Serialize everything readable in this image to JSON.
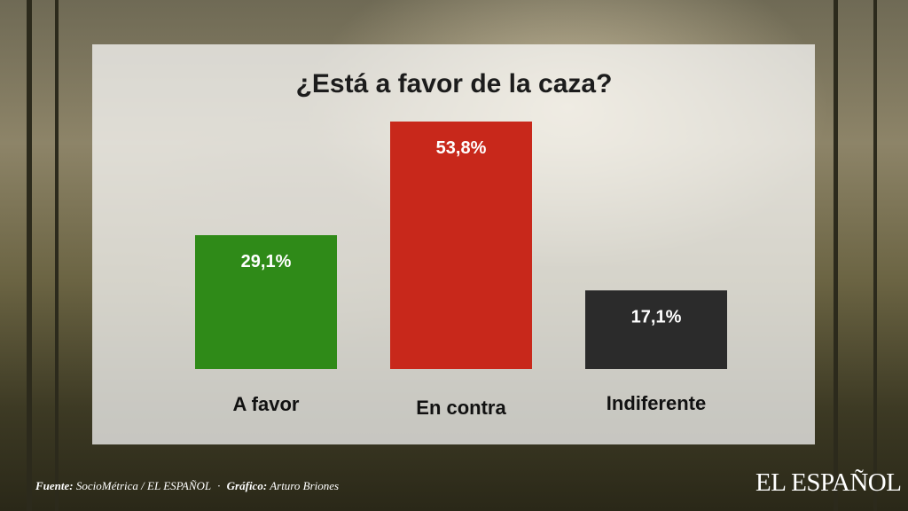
{
  "chart_data": {
    "type": "bar",
    "title": "¿Está a favor de la caza?",
    "categories": [
      "A favor",
      "En contra",
      "Indiferente"
    ],
    "values": [
      29.1,
      53.8,
      17.1
    ],
    "value_labels": [
      "29,1%",
      "53,8%",
      "17,1%"
    ],
    "colors": [
      "#2f8a18",
      "#c8281b",
      "#2b2b2b"
    ],
    "ylim": [
      0,
      60
    ],
    "grid": false,
    "xlabel": "",
    "ylabel": ""
  },
  "footer": {
    "source_label": "Fuente:",
    "source_value": "SocioMétrica / EL ESPAÑOL",
    "separator": "·",
    "credit_label": "Gráfico:",
    "credit_value": "Arturo Briones"
  },
  "brand": "EL ESPAÑOL"
}
